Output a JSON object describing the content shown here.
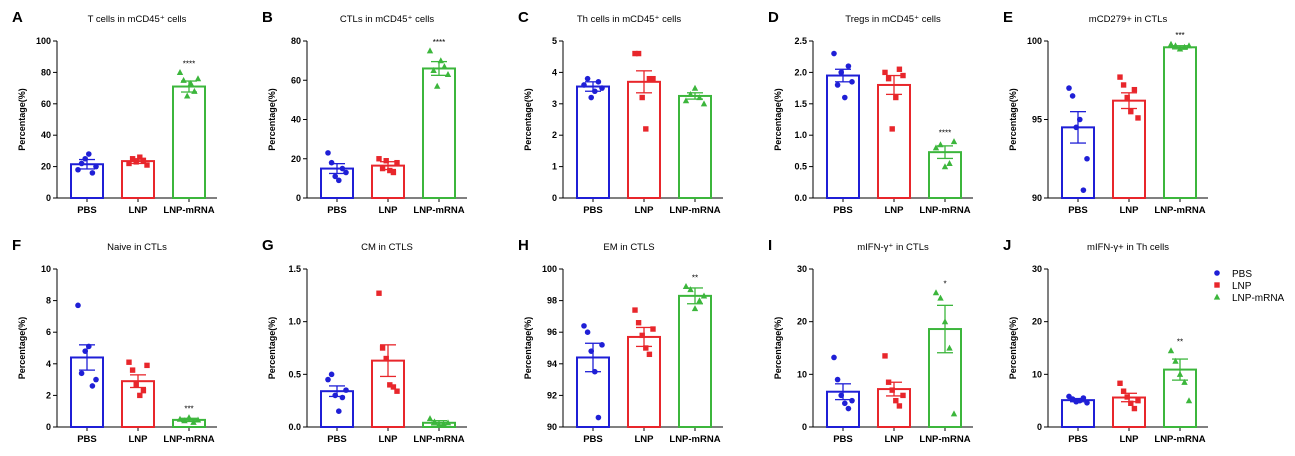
{
  "colors": {
    "PBS": "#1f1fd6",
    "LNP": "#e8262b",
    "LNP-mRNA": "#3cb63c"
  },
  "legend": [
    {
      "label": "PBS",
      "color": "#1f1fd6",
      "marker": "circle"
    },
    {
      "label": "LNP",
      "color": "#e8262b",
      "marker": "square"
    },
    {
      "label": "LNP-mRNA",
      "color": "#3cb63c",
      "marker": "triangle"
    }
  ],
  "chart_data": [
    {
      "panel": "A",
      "type": "bar",
      "title": "T cells  in mCD45⁺ cells",
      "ylabel": "Percentage(%)",
      "categories": [
        "PBS",
        "LNP",
        "LNP-mRNA"
      ],
      "ylim": [
        0,
        100
      ],
      "yticks": [
        0,
        20,
        40,
        60,
        80,
        100
      ],
      "values": [
        21.5,
        23.5,
        71
      ],
      "sem": [
        3,
        1.5,
        3.5
      ],
      "points": [
        [
          18,
          22,
          25,
          28,
          16,
          20
        ],
        [
          22,
          25,
          23,
          26,
          24,
          21
        ],
        [
          80,
          75,
          65,
          73,
          68,
          76
        ]
      ],
      "annotations": [
        "",
        "",
        "****"
      ]
    },
    {
      "panel": "B",
      "type": "bar",
      "title": "CTLs  in mCD45⁺ cells",
      "ylabel": "Percentage(%)",
      "categories": [
        "PBS",
        "LNP",
        "LNP-mRNA"
      ],
      "ylim": [
        0,
        80
      ],
      "yticks": [
        0,
        20,
        40,
        60,
        80
      ],
      "values": [
        15,
        16.5,
        66
      ],
      "sem": [
        2.5,
        2,
        3.5
      ],
      "points": [
        [
          23,
          18,
          11,
          9,
          15,
          13
        ],
        [
          20,
          15,
          19,
          14,
          13,
          18
        ],
        [
          75,
          65,
          57,
          70,
          67,
          63
        ]
      ],
      "annotations": [
        "",
        "",
        "****"
      ]
    },
    {
      "panel": "C",
      "type": "bar",
      "title": "Th cells in mCD45⁺ cells",
      "ylabel": "Percentage(%)",
      "categories": [
        "PBS",
        "LNP",
        "LNP-mRNA"
      ],
      "ylim": [
        0,
        5
      ],
      "yticks": [
        0,
        1,
        2,
        3,
        4,
        5
      ],
      "values": [
        3.55,
        3.7,
        3.25
      ],
      "sem": [
        0.15,
        0.35,
        0.1
      ],
      "points": [
        [
          3.6,
          3.8,
          3.2,
          3.4,
          3.7,
          3.5
        ],
        [
          4.6,
          4.6,
          3.2,
          2.2,
          3.8,
          3.8
        ],
        [
          3.1,
          3.3,
          3.5,
          3.2,
          3.0
        ]
      ],
      "annotations": [
        "",
        "",
        ""
      ]
    },
    {
      "panel": "D",
      "type": "bar",
      "title": "Tregs in mCD45⁺ cells",
      "ylabel": "Percentage(%)",
      "categories": [
        "PBS",
        "LNP",
        "LNP-mRNA"
      ],
      "ylim": [
        0,
        2.5
      ],
      "yticks": [
        "0.0",
        "0.5",
        "1.0",
        "1.5",
        "2.0",
        "2.5"
      ],
      "values": [
        1.95,
        1.8,
        0.73
      ],
      "sem": [
        0.1,
        0.15,
        0.1
      ],
      "points": [
        [
          2.3,
          1.8,
          2.0,
          1.6,
          2.1,
          1.85
        ],
        [
          2.0,
          1.9,
          1.1,
          1.6,
          2.05,
          1.95
        ],
        [
          0.8,
          0.85,
          0.5,
          0.55,
          0.9
        ]
      ],
      "annotations": [
        "",
        "",
        "****"
      ]
    },
    {
      "panel": "E",
      "type": "bar",
      "title": "mCD279+ in CTLs",
      "ylabel": "Percentage(%)",
      "categories": [
        "PBS",
        "LNP",
        "LNP-mRNA"
      ],
      "ylim": [
        90,
        100
      ],
      "yticks": [
        90,
        95,
        100
      ],
      "values": [
        94.5,
        96.2,
        99.6
      ],
      "sem": [
        1,
        0.5,
        0.1
      ],
      "points": [
        [
          97,
          96.5,
          94.5,
          95,
          90.5,
          92.5
        ],
        [
          97.7,
          97.2,
          96.4,
          95.5,
          96.9,
          95.1
        ],
        [
          99.8,
          99.7,
          99.5,
          99.6,
          99.7
        ]
      ],
      "annotations": [
        "",
        "",
        "***"
      ]
    },
    {
      "panel": "F",
      "type": "bar",
      "title": "Naive in CTLs",
      "ylabel": "Percentage(%)",
      "categories": [
        "PBS",
        "LNP",
        "LNP-mRNA"
      ],
      "ylim": [
        0,
        10
      ],
      "yticks": [
        0,
        2,
        4,
        6,
        8,
        10
      ],
      "values": [
        4.4,
        2.9,
        0.45
      ],
      "sem": [
        0.8,
        0.4,
        0.1
      ],
      "points": [
        [
          7.7,
          3.4,
          4.8,
          5.1,
          2.6,
          3.0
        ],
        [
          4.1,
          3.6,
          2.7,
          2.0,
          2.3,
          3.9
        ],
        [
          0.5,
          0.4,
          0.6,
          0.3,
          0.45
        ]
      ],
      "annotations": [
        "",
        "",
        "***"
      ]
    },
    {
      "panel": "G",
      "type": "bar",
      "title": "CM in CTLS",
      "ylabel": "Percentage(%)",
      "categories": [
        "PBS",
        "LNP",
        "LNP-mRNA"
      ],
      "ylim": [
        0,
        1.5
      ],
      "yticks": [
        "0.0",
        "0.5",
        "1.0",
        "1.5"
      ],
      "values": [
        0.34,
        0.63,
        0.04
      ],
      "sem": [
        0.05,
        0.15,
        0.02
      ],
      "points": [
        [
          0.45,
          0.5,
          0.3,
          0.15,
          0.28,
          0.35
        ],
        [
          1.27,
          0.75,
          0.65,
          0.4,
          0.38,
          0.34
        ],
        [
          0.08,
          0.05,
          0.02,
          0.03,
          0.04
        ]
      ],
      "annotations": [
        "",
        "",
        ""
      ]
    },
    {
      "panel": "H",
      "type": "bar",
      "title": "EM in CTLS",
      "ylabel": "Percentage(%)",
      "categories": [
        "PBS",
        "LNP",
        "LNP-mRNA"
      ],
      "ylim": [
        90,
        100
      ],
      "yticks": [
        90,
        92,
        94,
        96,
        98,
        100
      ],
      "values": [
        94.4,
        95.7,
        98.3
      ],
      "sem": [
        0.9,
        0.6,
        0.5
      ],
      "points": [
        [
          96.4,
          96.0,
          94.8,
          93.5,
          90.6,
          95.2
        ],
        [
          97.4,
          96.6,
          95.8,
          95.0,
          94.6,
          96.2
        ],
        [
          98.9,
          98.7,
          97.5,
          98.0,
          98.3
        ]
      ],
      "annotations": [
        "",
        "",
        "**"
      ]
    },
    {
      "panel": "I",
      "type": "bar",
      "title": "mIFN-γ⁺ in CTLs",
      "ylabel": "Percentage(%)",
      "categories": [
        "PBS",
        "LNP",
        "LNP-mRNA"
      ],
      "ylim": [
        0,
        30
      ],
      "yticks": [
        0,
        10,
        20,
        30
      ],
      "values": [
        6.7,
        7.2,
        18.6
      ],
      "sem": [
        1.5,
        1.3,
        4.5
      ],
      "points": [
        [
          13.2,
          9.0,
          6.0,
          4.5,
          3.5,
          5.0
        ],
        [
          13.5,
          8.5,
          7.0,
          5.0,
          4.0,
          6.0
        ],
        [
          25.5,
          24.5,
          20.0,
          15.0,
          2.5
        ]
      ],
      "annotations": [
        "",
        "",
        "*"
      ]
    },
    {
      "panel": "J",
      "type": "bar",
      "title": "mIFN-γ+ in Th cells",
      "ylabel": "Percentage(%)",
      "categories": [
        "PBS",
        "LNP",
        "LNP-mRNA"
      ],
      "ylim": [
        0,
        30
      ],
      "yticks": [
        0,
        10,
        20,
        30
      ],
      "values": [
        5.1,
        5.6,
        10.9
      ],
      "sem": [
        0.3,
        0.8,
        2
      ],
      "points": [
        [
          5.8,
          5.3,
          4.8,
          5.0,
          5.5,
          4.6
        ],
        [
          8.3,
          6.8,
          5.7,
          4.5,
          3.5,
          5.0
        ],
        [
          14.5,
          12.5,
          10.0,
          8.5,
          5.0
        ]
      ],
      "annotations": [
        "",
        "",
        "**"
      ]
    }
  ]
}
